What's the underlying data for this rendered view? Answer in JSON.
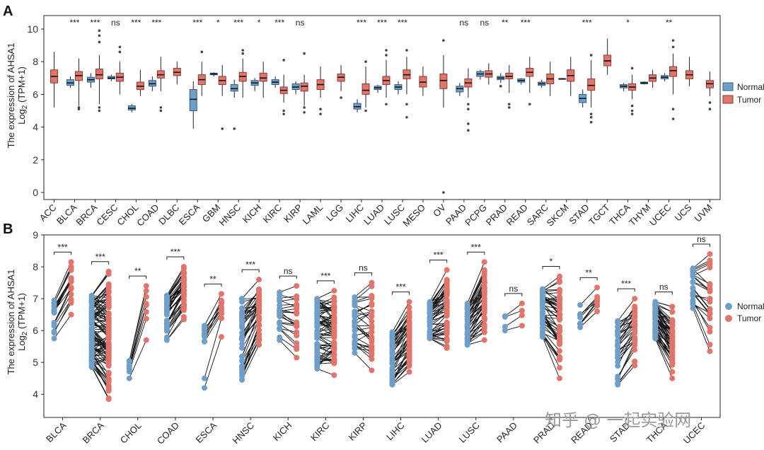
{
  "figure": {
    "panel_a_label": "A",
    "panel_b_label": "B",
    "watermark": "知乎 @ 一起实验网"
  },
  "legend": {
    "normal": "Normal",
    "tumor": "Tumor"
  },
  "colors": {
    "normal": "#6f9fc8",
    "normal_edge": "#2f5f86",
    "tumor": "#e2756b",
    "tumor_edge": "#8a3a33",
    "line": "#111111"
  },
  "chart_data": [
    {
      "panel": "A",
      "type": "box",
      "ylabel_line1": "The expression of AHSA1",
      "ylabel_line2": "Log2 (TPM+1)",
      "ylim": [
        0,
        10
      ],
      "yticks": [
        0,
        2,
        4,
        6,
        8,
        10
      ],
      "categories": [
        "ACC",
        "BLCA",
        "BRCA",
        "CESC",
        "CHOL",
        "COAD",
        "DLBC",
        "ESCA",
        "GBM",
        "HNSC",
        "KICH",
        "KIRC",
        "KIRP",
        "LAML",
        "LGG",
        "LIHC",
        "LUAD",
        "LUSC",
        "MESO",
        "OV",
        "PAAD",
        "PCPG",
        "PRAD",
        "READ",
        "SARC",
        "SKCM",
        "STAD",
        "TGCT",
        "THCA",
        "THYM",
        "UCEC",
        "UCS",
        "UVM"
      ],
      "significance": [
        "",
        "***",
        "***",
        "ns",
        "***",
        "***",
        "",
        "***",
        "*",
        "***",
        "*",
        "***",
        "ns",
        "",
        "",
        "***",
        "***",
        "***",
        "",
        "",
        "ns",
        "ns",
        "**",
        "***",
        "",
        "",
        "***",
        "",
        "*",
        "",
        "**",
        "",
        ""
      ],
      "normal": [
        null,
        {
          "wlo": 6.4,
          "q1": 6.55,
          "med": 6.7,
          "q3": 6.9,
          "whi": 7.1,
          "out": []
        },
        {
          "wlo": 6.4,
          "q1": 6.75,
          "med": 6.9,
          "q3": 7.05,
          "whi": 7.3,
          "out": []
        },
        {
          "wlo": 6.8,
          "q1": 6.95,
          "med": 7.0,
          "q3": 7.1,
          "whi": 7.2,
          "out": []
        },
        {
          "wlo": 4.9,
          "q1": 5.05,
          "med": 5.15,
          "q3": 5.3,
          "whi": 5.4,
          "out": []
        },
        {
          "wlo": 6.2,
          "q1": 6.5,
          "med": 6.65,
          "q3": 6.85,
          "whi": 7.1,
          "out": []
        },
        null,
        {
          "wlo": 3.9,
          "q1": 5.0,
          "med": 5.7,
          "q3": 6.3,
          "whi": 6.8,
          "out": []
        },
        {
          "wlo": 7.1,
          "q1": 7.2,
          "med": 7.25,
          "q3": 7.3,
          "whi": 7.35,
          "out": []
        },
        {
          "wlo": 5.8,
          "q1": 6.2,
          "med": 6.35,
          "q3": 6.6,
          "whi": 6.9,
          "out": [
            3.9
          ]
        },
        {
          "wlo": 6.2,
          "q1": 6.55,
          "med": 6.7,
          "q3": 6.85,
          "whi": 7.0,
          "out": []
        },
        {
          "wlo": 6.4,
          "q1": 6.6,
          "med": 6.75,
          "q3": 6.9,
          "whi": 7.1,
          "out": []
        },
        {
          "wlo": 6.0,
          "q1": 6.3,
          "med": 6.45,
          "q3": 6.65,
          "whi": 6.8,
          "out": []
        },
        null,
        null,
        {
          "wlo": 4.9,
          "q1": 5.1,
          "med": 5.25,
          "q3": 5.45,
          "whi": 5.7,
          "out": []
        },
        {
          "wlo": 6.1,
          "q1": 6.3,
          "med": 6.4,
          "q3": 6.5,
          "whi": 6.6,
          "out": []
        },
        {
          "wlo": 6.0,
          "q1": 6.3,
          "med": 6.45,
          "q3": 6.6,
          "whi": 6.8,
          "out": []
        },
        null,
        null,
        {
          "wlo": 5.9,
          "q1": 6.15,
          "med": 6.35,
          "q3": 6.5,
          "whi": 6.7,
          "out": []
        },
        {
          "wlo": 6.9,
          "q1": 7.1,
          "med": 7.25,
          "q3": 7.4,
          "whi": 7.5,
          "out": []
        },
        {
          "wlo": 6.7,
          "q1": 6.9,
          "med": 7.0,
          "q3": 7.1,
          "whi": 7.3,
          "out": [
            6.5
          ]
        },
        {
          "wlo": 6.6,
          "q1": 6.75,
          "med": 6.85,
          "q3": 6.95,
          "whi": 7.0,
          "out": []
        },
        {
          "wlo": 6.4,
          "q1": 6.55,
          "med": 6.65,
          "q3": 6.75,
          "whi": 6.9,
          "out": []
        },
        {
          "wlo": 6.9,
          "q1": 6.92,
          "med": 6.95,
          "q3": 6.97,
          "whi": 7.0,
          "out": []
        },
        {
          "wlo": 5.2,
          "q1": 5.5,
          "med": 5.75,
          "q3": 6.0,
          "whi": 6.3,
          "out": []
        },
        null,
        {
          "wlo": 6.2,
          "q1": 6.4,
          "med": 6.5,
          "q3": 6.6,
          "whi": 6.7,
          "out": []
        },
        {
          "wlo": 6.6,
          "q1": 6.65,
          "med": 6.7,
          "q3": 6.75,
          "whi": 6.8,
          "out": []
        },
        {
          "wlo": 6.8,
          "q1": 6.95,
          "med": 7.05,
          "q3": 7.15,
          "whi": 7.3,
          "out": []
        },
        null,
        null
      ],
      "tumor": [
        {
          "wlo": 5.2,
          "q1": 6.7,
          "med": 7.1,
          "q3": 7.5,
          "whi": 8.6,
          "out": []
        },
        {
          "wlo": 5.3,
          "q1": 6.85,
          "med": 7.15,
          "q3": 7.4,
          "whi": 8.2,
          "out": [
            5.1,
            5.2
          ]
        },
        {
          "wlo": 5.4,
          "q1": 6.95,
          "med": 7.2,
          "q3": 7.55,
          "whi": 8.4,
          "out": [
            9.2,
            9.6,
            9.9,
            5.0,
            5.2
          ]
        },
        {
          "wlo": 6.0,
          "q1": 6.8,
          "med": 7.05,
          "q3": 7.3,
          "whi": 8.0,
          "out": [
            8.6,
            8.9
          ]
        },
        {
          "wlo": 5.9,
          "q1": 6.3,
          "med": 6.5,
          "q3": 6.75,
          "whi": 7.5,
          "out": []
        },
        {
          "wlo": 6.2,
          "q1": 7.0,
          "med": 7.2,
          "q3": 7.45,
          "whi": 8.3,
          "out": [
            5.2,
            5.0
          ]
        },
        {
          "wlo": 6.6,
          "q1": 7.15,
          "med": 7.35,
          "q3": 7.6,
          "whi": 8.0,
          "out": []
        },
        {
          "wlo": 5.9,
          "q1": 6.6,
          "med": 6.9,
          "q3": 7.2,
          "whi": 8.0,
          "out": [
            8.6
          ]
        },
        {
          "wlo": 5.9,
          "q1": 6.6,
          "med": 6.85,
          "q3": 7.1,
          "whi": 7.8,
          "out": [
            3.9
          ]
        },
        {
          "wlo": 5.8,
          "q1": 6.8,
          "med": 7.1,
          "q3": 7.35,
          "whi": 8.2,
          "out": [
            8.5,
            8.7
          ]
        },
        {
          "wlo": 5.8,
          "q1": 6.8,
          "med": 7.0,
          "q3": 7.3,
          "whi": 8.0,
          "out": []
        },
        {
          "wlo": 5.5,
          "q1": 6.05,
          "med": 6.25,
          "q3": 6.45,
          "whi": 7.2,
          "out": [
            8.1,
            5.0,
            4.8
          ]
        },
        {
          "wlo": 5.3,
          "q1": 6.2,
          "med": 6.5,
          "q3": 6.7,
          "whi": 7.2,
          "out": [
            8.5,
            5.2,
            4.9
          ]
        },
        {
          "wlo": 5.8,
          "q1": 6.3,
          "med": 6.6,
          "q3": 6.9,
          "whi": 7.7,
          "out": [
            5.1,
            4.8
          ]
        },
        {
          "wlo": 6.2,
          "q1": 6.8,
          "med": 7.05,
          "q3": 7.25,
          "whi": 7.8,
          "out": [
            5.8
          ]
        },
        {
          "wlo": 5.2,
          "q1": 6.0,
          "med": 6.25,
          "q3": 6.65,
          "whi": 7.7,
          "out": [
            8.0,
            5.0
          ]
        },
        {
          "wlo": 5.8,
          "q1": 6.6,
          "med": 6.85,
          "q3": 7.1,
          "whi": 8.1,
          "out": [
            8.4,
            8.7,
            5.4
          ]
        },
        {
          "wlo": 6.0,
          "q1": 6.95,
          "med": 7.2,
          "q3": 7.5,
          "whi": 8.3,
          "out": [
            8.7,
            5.4,
            4.6
          ]
        },
        {
          "wlo": 5.9,
          "q1": 6.45,
          "med": 6.75,
          "q3": 7.1,
          "whi": 7.7,
          "out": []
        },
        {
          "wlo": 5.2,
          "q1": 6.35,
          "med": 6.85,
          "q3": 7.25,
          "whi": 8.4,
          "out": [
            9.3,
            0.0
          ]
        },
        {
          "wlo": 5.8,
          "q1": 6.45,
          "med": 6.7,
          "q3": 6.95,
          "whi": 7.6,
          "out": [
            5.4,
            5.1,
            4.2,
            3.8
          ]
        },
        {
          "wlo": 6.6,
          "q1": 7.05,
          "med": 7.25,
          "q3": 7.45,
          "whi": 7.9,
          "out": []
        },
        {
          "wlo": 6.1,
          "q1": 6.95,
          "med": 7.1,
          "q3": 7.3,
          "whi": 7.8,
          "out": [
            5.4,
            5.2
          ]
        },
        {
          "wlo": 6.1,
          "q1": 7.1,
          "med": 7.35,
          "q3": 7.6,
          "whi": 8.3,
          "out": [
            5.4
          ]
        },
        {
          "wlo": 5.9,
          "q1": 6.65,
          "med": 6.95,
          "q3": 7.25,
          "whi": 8.0,
          "out": []
        },
        {
          "wlo": 5.9,
          "q1": 6.8,
          "med": 7.15,
          "q3": 7.5,
          "whi": 8.3,
          "out": []
        },
        {
          "wlo": 5.2,
          "q1": 6.25,
          "med": 6.55,
          "q3": 6.95,
          "whi": 8.1,
          "out": [
            8.4,
            4.8,
            4.6,
            4.3
          ]
        },
        {
          "wlo": 7.2,
          "q1": 7.75,
          "med": 8.05,
          "q3": 8.4,
          "whi": 9.4,
          "out": []
        },
        {
          "wlo": 5.7,
          "q1": 6.25,
          "med": 6.45,
          "q3": 6.65,
          "whi": 7.2,
          "out": [
            7.6,
            5.3,
            5.0,
            4.8
          ]
        },
        {
          "wlo": 6.4,
          "q1": 6.8,
          "med": 7.0,
          "q3": 7.2,
          "whi": 7.5,
          "out": []
        },
        {
          "wlo": 6.0,
          "q1": 7.1,
          "med": 7.45,
          "q3": 7.7,
          "whi": 8.5,
          "out": [
            8.9,
            9.3,
            5.1,
            4.5
          ]
        },
        {
          "wlo": 6.5,
          "q1": 6.95,
          "med": 7.2,
          "q3": 7.45,
          "whi": 8.3,
          "out": []
        },
        {
          "wlo": 5.9,
          "q1": 6.4,
          "med": 6.65,
          "q3": 6.85,
          "whi": 7.4,
          "out": [
            5.5,
            5.1
          ]
        }
      ]
    },
    {
      "panel": "B",
      "type": "paired",
      "ylabel_line1": "The expression of AHSA1",
      "ylabel_line2": "Log2 (TPM+1)",
      "ylim": [
        3.65,
        9.0
      ],
      "yticks": [
        4,
        5,
        6,
        7,
        8,
        9
      ],
      "categories": [
        "BLCA",
        "BRCA",
        "CHOL",
        "COAD",
        "ESCA",
        "HNSC",
        "KICH",
        "KIRC",
        "KIRP",
        "LIHC",
        "LUAD",
        "LUSC",
        "PAAD",
        "PRAD",
        "READ",
        "STAD",
        "THCA",
        "UCEC"
      ],
      "significance": [
        "***",
        "***",
        "**",
        "***",
        "**",
        "***",
        "ns",
        "***",
        "ns",
        "***",
        "***",
        "***",
        "ns",
        "*",
        "**",
        "***",
        "ns",
        "ns"
      ],
      "groups": [
        {
          "n": 19,
          "normal": [
            5.75,
            6.95
          ],
          "tumor": [
            6.5,
            8.15
          ]
        },
        {
          "n": 110,
          "normal": [
            4.85,
            7.1
          ],
          "tumor": [
            3.85,
            7.85
          ]
        },
        {
          "n": 9,
          "normal": [
            4.5,
            5.05
          ],
          "tumor": [
            5.7,
            7.4
          ]
        },
        {
          "n": 41,
          "normal": [
            5.7,
            7.1
          ],
          "tumor": [
            6.35,
            8.0
          ]
        },
        {
          "n": 11,
          "normal": [
            4.2,
            6.15
          ],
          "tumor": [
            5.8,
            7.15
          ]
        },
        {
          "n": 43,
          "normal": [
            4.45,
            7.0
          ],
          "tumor": [
            5.55,
            7.6
          ]
        },
        {
          "n": 23,
          "normal": [
            5.7,
            7.2
          ],
          "tumor": [
            5.15,
            7.4
          ]
        },
        {
          "n": 72,
          "normal": [
            4.8,
            7.0
          ],
          "tumor": [
            4.6,
            7.25
          ]
        },
        {
          "n": 32,
          "normal": [
            5.3,
            7.05
          ],
          "tumor": [
            4.75,
            7.5
          ]
        },
        {
          "n": 50,
          "normal": [
            4.3,
            5.95
          ],
          "tumor": [
            4.7,
            6.9
          ]
        },
        {
          "n": 57,
          "normal": [
            5.75,
            6.9
          ],
          "tumor": [
            5.45,
            7.9
          ]
        },
        {
          "n": 49,
          "normal": [
            5.55,
            6.85
          ],
          "tumor": [
            5.7,
            8.15
          ]
        },
        {
          "n": 4,
          "normal": [
            6.0,
            6.45
          ],
          "tumor": [
            6.15,
            6.85
          ]
        },
        {
          "n": 52,
          "normal": [
            5.8,
            7.3
          ],
          "tumor": [
            4.5,
            7.7
          ]
        },
        {
          "n": 9,
          "normal": [
            6.1,
            6.8
          ],
          "tumor": [
            6.6,
            7.35
          ]
        },
        {
          "n": 32,
          "normal": [
            4.3,
            6.3
          ],
          "tumor": [
            4.9,
            7.0
          ]
        },
        {
          "n": 58,
          "normal": [
            5.75,
            6.9
          ],
          "tumor": [
            4.5,
            6.75
          ]
        },
        {
          "n": 23,
          "normal": [
            6.7,
            7.95
          ],
          "tumor": [
            5.35,
            8.4
          ]
        }
      ]
    }
  ]
}
